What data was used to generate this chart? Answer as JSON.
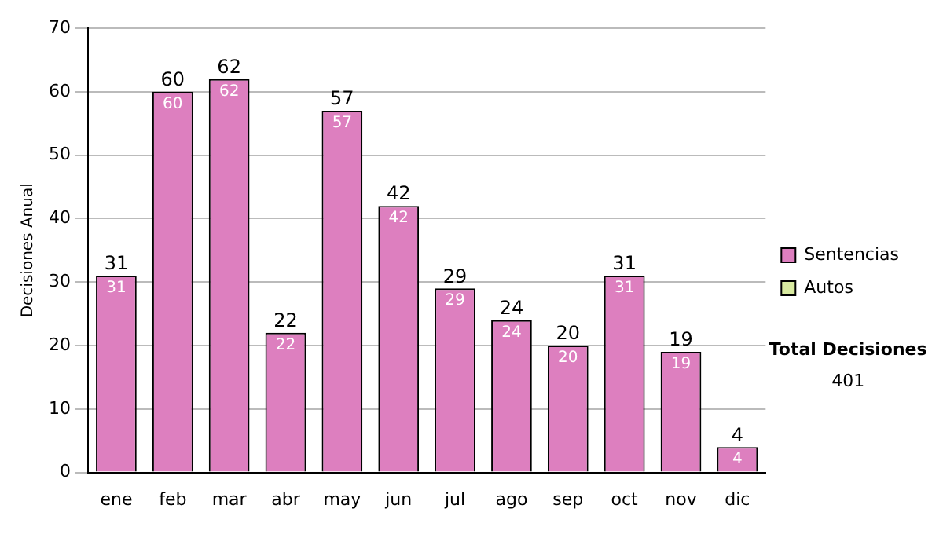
{
  "chart_data": {
    "type": "bar",
    "ylabel": "Decisiones Anual",
    "categories": [
      "ene",
      "feb",
      "mar",
      "abr",
      "may",
      "jun",
      "jul",
      "ago",
      "sep",
      "oct",
      "nov",
      "dic"
    ],
    "series": [
      {
        "name": "Sentencias",
        "color": "#dd7fbf",
        "values": [
          31,
          60,
          62,
          22,
          57,
          42,
          29,
          24,
          20,
          31,
          19,
          4
        ]
      },
      {
        "name": "Autos",
        "color": "#d8eaa0",
        "values": [
          null,
          null,
          null,
          null,
          null,
          null,
          null,
          null,
          null,
          null,
          null,
          null
        ]
      }
    ],
    "stacked": true,
    "data_labels": true,
    "totals": [
      "31",
      "60",
      "62",
      "22",
      "57",
      "42",
      "29",
      "24",
      "20",
      "31",
      "19",
      "4"
    ],
    "ylim": [
      0,
      70
    ],
    "yticks": [
      0,
      10,
      20,
      30,
      40,
      50,
      60,
      70
    ],
    "grid": "y",
    "legend": "right",
    "annotations": [
      "Total Decisiones",
      "401"
    ]
  }
}
